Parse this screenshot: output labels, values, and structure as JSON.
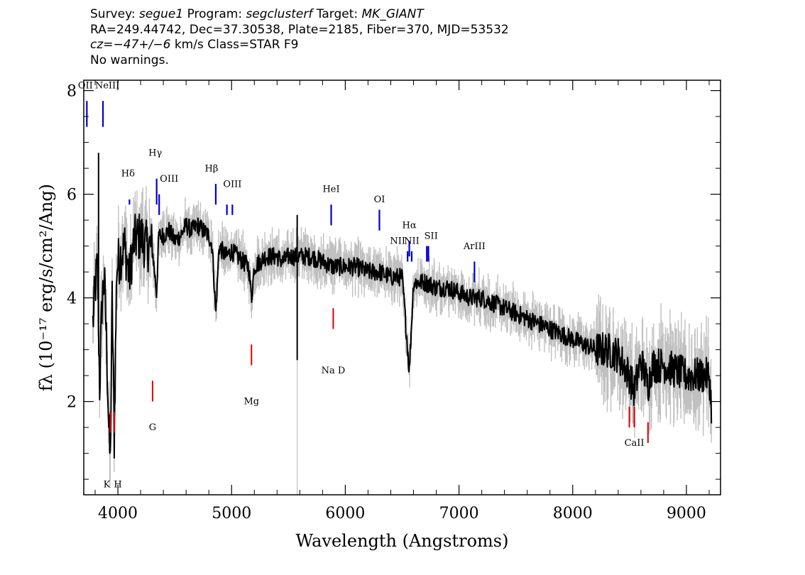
{
  "header": {
    "line1": {
      "survey_label": "Survey: ",
      "survey": "segue1",
      "program_label": " Program: ",
      "program": "segclusterf",
      "target_label": " Target: ",
      "target": "MK_GIANT"
    },
    "line2": "RA=249.44742, Dec=37.30538, Plate=2185, Fiber=370, MJD=53532",
    "line3": {
      "cz_label": "cz=",
      "cz_value": "−47+/−6",
      "rest": " km/s Class=STAR F9"
    },
    "line4": "No warnings."
  },
  "colors": {
    "spectrum": "#000000",
    "error_band": "#c0c0c0",
    "emission_lines": "#0000cc",
    "absorption_lines": "#dd0000"
  },
  "chart_data": {
    "type": "line",
    "xlabel": "Wavelength (Angstroms)",
    "ylabel": "fλ (10⁻¹⁷ erg/s/cm²/Ang)",
    "xlim": [
      3700,
      9300
    ],
    "ylim": [
      0.2,
      8.2
    ],
    "x_ticks": [
      4000,
      5000,
      6000,
      7000,
      8000,
      9000
    ],
    "y_ticks": [
      2,
      4,
      6,
      8
    ],
    "grid": false,
    "series": [
      {
        "x": [
          3780,
          3800,
          3820,
          3840,
          3860,
          3880,
          3900,
          3920,
          3933,
          3950,
          3968,
          3990,
          4020,
          4060,
          4101,
          4140,
          4200,
          4250,
          4300,
          4340,
          4360,
          4400,
          4450,
          4500,
          4550,
          4600,
          4650,
          4700,
          4750,
          4800,
          4830,
          4861,
          4890,
          4950,
          5000,
          5050,
          5100,
          5150,
          5175,
          5200,
          5250,
          5300,
          5350,
          5400,
          5450,
          5500,
          5577,
          5650,
          5700,
          5800,
          5893,
          5950,
          6000,
          6100,
          6200,
          6300,
          6400,
          6500,
          6563,
          6600,
          6700,
          6800,
          6900,
          7000,
          7100,
          7200,
          7300,
          7400,
          7500,
          7600,
          7700,
          7800,
          7900,
          8000,
          8100,
          8200,
          8300,
          8400,
          8498,
          8542,
          8600,
          8662,
          8700,
          8800,
          8900,
          9000,
          9100,
          9200,
          9220
        ],
        "values": [
          3.5,
          4.2,
          4.6,
          2.3,
          3.9,
          4.4,
          3.2,
          1.5,
          0.8,
          4.0,
          1.3,
          4.6,
          4.8,
          5.0,
          4.4,
          5.1,
          5.2,
          5.0,
          5.0,
          4.1,
          5.2,
          5.2,
          5.3,
          5.1,
          5.2,
          5.4,
          5.3,
          5.4,
          5.3,
          5.2,
          5.0,
          3.7,
          5.0,
          4.8,
          4.9,
          4.8,
          4.7,
          4.6,
          4.0,
          4.6,
          4.7,
          4.8,
          4.8,
          4.8,
          4.7,
          4.8,
          4.8,
          4.8,
          4.8,
          4.7,
          4.6,
          4.6,
          4.6,
          4.6,
          4.5,
          4.5,
          4.4,
          4.4,
          2.6,
          4.3,
          4.3,
          4.2,
          4.2,
          4.1,
          4.0,
          4.0,
          3.9,
          3.8,
          3.7,
          3.6,
          3.5,
          3.4,
          3.3,
          3.2,
          3.1,
          3.0,
          3.0,
          2.9,
          2.5,
          2.2,
          2.8,
          2.3,
          2.7,
          2.7,
          2.6,
          2.5,
          2.5,
          2.5,
          1.9
        ]
      }
    ],
    "emission_lines": [
      {
        "label": "OII",
        "wavelength": 3727
      },
      {
        "label": "NeIII",
        "wavelength": 3869
      },
      {
        "label": "Hδ",
        "wavelength": 4102
      },
      {
        "label": "Hγ",
        "wavelength": 4341
      },
      {
        "label": "OIII",
        "wavelength": 4363
      },
      {
        "label": "Hβ",
        "wavelength": 4861
      },
      {
        "label": "OIII",
        "wavelength": 4959
      },
      {
        "label": "OIII",
        "wavelength": 5007
      },
      {
        "label": "HeI",
        "wavelength": 5876
      },
      {
        "label": "OI",
        "wavelength": 6300
      },
      {
        "label": "NII",
        "wavelength": 6548
      },
      {
        "label": "Hα",
        "wavelength": 6563
      },
      {
        "label": "NII",
        "wavelength": 6584
      },
      {
        "label": "SII",
        "wavelength": 6717
      },
      {
        "label": "SII",
        "wavelength": 6731
      },
      {
        "label": "ArIII",
        "wavelength": 7136
      }
    ],
    "absorption_lines": [
      {
        "label": "K",
        "wavelength": 3934
      },
      {
        "label": "H",
        "wavelength": 3969
      },
      {
        "label": "G",
        "wavelength": 4305
      },
      {
        "label": "Mg",
        "wavelength": 5175
      },
      {
        "label": "Na D",
        "wavelength": 5894
      },
      {
        "label": "CaII",
        "wavelength": 8498
      },
      {
        "label": "CaII",
        "wavelength": 8542
      },
      {
        "label": "CaII",
        "wavelength": 8662
      }
    ]
  }
}
